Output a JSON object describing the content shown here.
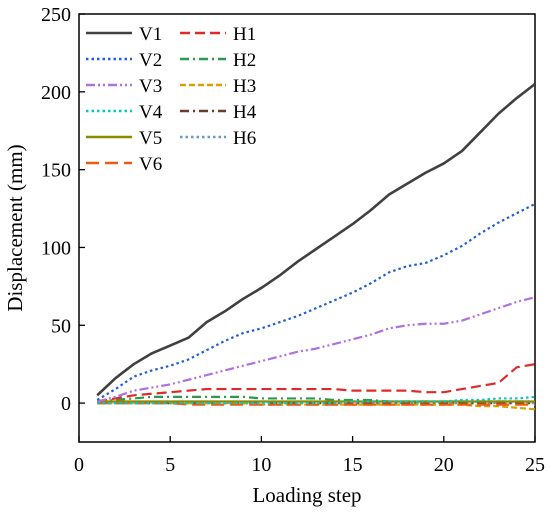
{
  "chart_data": {
    "type": "line",
    "xlabel": "Loading step",
    "ylabel": "Displacement (mm)",
    "xlim": [
      0,
      25
    ],
    "ylim": [
      -25,
      250
    ],
    "xticks": [
      0,
      5,
      10,
      15,
      20,
      25
    ],
    "yticks": [
      0,
      50,
      100,
      150,
      200,
      250
    ],
    "grid": false,
    "legend": "top-left, two columns",
    "x": [
      1,
      2,
      3,
      4,
      5,
      6,
      7,
      8,
      9,
      10,
      11,
      12,
      13,
      14,
      15,
      16,
      17,
      18,
      19,
      20,
      21,
      22,
      23,
      24,
      25
    ],
    "series": [
      {
        "name": "V1",
        "color": "#404040",
        "dash": "solid",
        "values": [
          5,
          16,
          25,
          32,
          37,
          42,
          52,
          59,
          67,
          74,
          82,
          91,
          99,
          107,
          115,
          124,
          134,
          141,
          148,
          154,
          162,
          174,
          186,
          196,
          205
        ]
      },
      {
        "name": "V2",
        "color": "#1f5fd6",
        "dash": "dot",
        "values": [
          2,
          9,
          17,
          21,
          24,
          28,
          34,
          40,
          45,
          48,
          52,
          56,
          61,
          66,
          71,
          77,
          84,
          88,
          90,
          95,
          101,
          109,
          116,
          122,
          128
        ]
      },
      {
        "name": "V3",
        "color": "#b070e0",
        "dash": "dashdotdot",
        "values": [
          1,
          4,
          8,
          10,
          12,
          15,
          18,
          21,
          24,
          27,
          30,
          33,
          35,
          38,
          41,
          44,
          48,
          50,
          51,
          51,
          53,
          57,
          61,
          65,
          68
        ]
      },
      {
        "name": "V4",
        "color": "#00c8c8",
        "dash": "dot",
        "values": [
          0,
          0,
          0,
          0,
          0,
          0,
          0,
          0,
          0,
          0,
          0,
          0,
          0,
          0,
          1,
          1,
          1,
          1,
          1,
          1,
          2,
          2,
          3,
          3,
          4
        ]
      },
      {
        "name": "V5",
        "color": "#8a8a00",
        "dash": "solid",
        "values": [
          1,
          1,
          1,
          1,
          1,
          1,
          1,
          1,
          1,
          1,
          1,
          1,
          1,
          1,
          1,
          1,
          1,
          1,
          1,
          1,
          1,
          1,
          1,
          1,
          1
        ]
      },
      {
        "name": "V6",
        "color": "#f05a14",
        "dash": "longdash",
        "values": [
          0,
          0,
          0,
          0,
          0,
          -1,
          -1,
          -1,
          -1,
          -1,
          -1,
          -1,
          -1,
          -1,
          -1,
          -1,
          -1,
          -1,
          -1,
          -1,
          -1,
          -1,
          -1,
          -1,
          -1
        ]
      },
      {
        "name": "H1",
        "color": "#e02a2a",
        "dash": "dash",
        "values": [
          1,
          3,
          5,
          6,
          7,
          8,
          9,
          9,
          9,
          9,
          9,
          9,
          9,
          9,
          8,
          8,
          8,
          8,
          7,
          7,
          9,
          11,
          13,
          23,
          25
        ]
      },
      {
        "name": "H2",
        "color": "#2a9a50",
        "dash": "dashdot",
        "values": [
          1,
          2,
          3,
          4,
          4,
          4,
          4,
          4,
          4,
          3,
          3,
          3,
          3,
          2,
          2,
          2,
          1,
          1,
          1,
          1,
          1,
          1,
          1,
          1,
          1
        ]
      },
      {
        "name": "H3",
        "color": "#d8a000",
        "dash": "shortdash",
        "values": [
          0,
          0,
          0,
          0,
          0,
          0,
          0,
          0,
          0,
          -1,
          -1,
          -1,
          -1,
          -1,
          -1,
          -1,
          -1,
          -1,
          -1,
          -1,
          -1,
          -2,
          -2,
          -3,
          -4
        ]
      },
      {
        "name": "H4",
        "color": "#6b3b2a",
        "dash": "dashdot",
        "values": [
          0,
          0,
          0,
          0,
          0,
          0,
          0,
          0,
          0,
          0,
          0,
          0,
          0,
          0,
          0,
          0,
          0,
          0,
          0,
          0,
          0,
          0,
          0,
          0,
          0
        ]
      },
      {
        "name": "H6",
        "color": "#6a96c8",
        "dash": "dot",
        "values": [
          0,
          0,
          0,
          0,
          0,
          0,
          0,
          0,
          0,
          0,
          0,
          0,
          0,
          0,
          0,
          0,
          0,
          0,
          0,
          0,
          0,
          0,
          0,
          0,
          0
        ]
      }
    ]
  }
}
